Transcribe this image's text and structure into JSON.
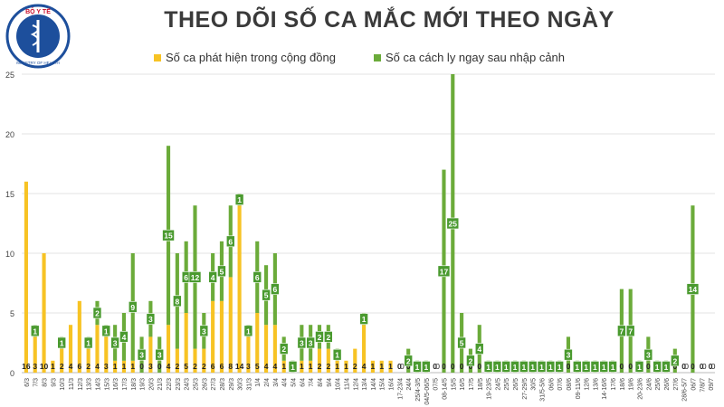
{
  "header": {
    "title": "THEO DÕI SỐ CA MẮC MỚI THEO NGÀY",
    "logo_top_text": "BỘ Y TẾ",
    "logo_bottom_text": "MINISTRY OF HEALTH"
  },
  "colors": {
    "community": "#f7c324",
    "imported": "#6bab3a",
    "label_fill": "#4a9a2f",
    "grid": "#e3e3e3",
    "axis_text": "#444444",
    "title": "#3a3a3a"
  },
  "chart_data": {
    "type": "bar",
    "title": "THEO DÕI SỐ CA MẮC MỚI THEO NGÀY",
    "xlabel": "",
    "ylabel": "",
    "ylim": [
      0,
      25
    ],
    "yticks": [
      0,
      5,
      10,
      15,
      20,
      25
    ],
    "grid": true,
    "legend_position": "top",
    "categories": [
      "6/3",
      "7/3",
      "8/3",
      "9/3",
      "10/3",
      "11/3",
      "12/3",
      "13/3",
      "14/3",
      "15/3",
      "16/3",
      "17/3",
      "18/3",
      "19/3",
      "20/3",
      "21/3",
      "22/3",
      "23/3",
      "24/3",
      "25/3",
      "26/3",
      "27/3",
      "28/3",
      "29/3",
      "30/3",
      "31/3",
      "1/4",
      "2/4",
      "3/4",
      "4/4",
      "5/4",
      "6/4",
      "7/4",
      "8/4",
      "9/4",
      "10/4",
      "11/4",
      "12/4",
      "13/4",
      "14/4",
      "15/4",
      "16/4",
      "17-23/4",
      "24/4",
      "25/4-3/5",
      "04/5-06/5",
      "07/5",
      "08-14/5",
      "15/5",
      "16/5",
      "17/5",
      "18/5",
      "19-23/5",
      "24/5",
      "25/5",
      "26/5",
      "27-29/5",
      "30/5",
      "31/5-5/6",
      "06/6",
      "07/6",
      "08/6",
      "09-11/6",
      "12/6",
      "13/6",
      "14-16/6",
      "17/6",
      "18/6",
      "19/6",
      "20-23/6",
      "24/6",
      "25/6",
      "26/6",
      "27/6",
      "28/6-5/7",
      "06/7",
      "7/8/7",
      "09/7"
    ],
    "series": [
      {
        "name": "Số ca phát hiện trong cộng đồng",
        "values": [
          16,
          3,
          10,
          1,
          2,
          4,
          6,
          2,
          4,
          3,
          1,
          1,
          1,
          0,
          3,
          0,
          4,
          2,
          5,
          2,
          2,
          6,
          6,
          8,
          14,
          3,
          5,
          4,
          4,
          1,
          0,
          1,
          1,
          2,
          2,
          1,
          1,
          2,
          4,
          1,
          1,
          1,
          0,
          0,
          0,
          0,
          0,
          0,
          0,
          0,
          0,
          0,
          0,
          0,
          0,
          0,
          0,
          0,
          0,
          0,
          0,
          0,
          0,
          0,
          0,
          0,
          0,
          0,
          0,
          0,
          0,
          0,
          0,
          0,
          0,
          0,
          0,
          0
        ]
      },
      {
        "name": "Số ca cách ly ngay sau nhập cảnh",
        "values": [
          0,
          1,
          0,
          0,
          1,
          0,
          0,
          1,
          2,
          1,
          3,
          4,
          9,
          3,
          3,
          3,
          15,
          8,
          6,
          12,
          3,
          4,
          5,
          6,
          1,
          1,
          6,
          5,
          6,
          2,
          1,
          3,
          3,
          2,
          2,
          1,
          0,
          0,
          1,
          0,
          0,
          0,
          0,
          2,
          1,
          1,
          0,
          17,
          25,
          5,
          2,
          4,
          1,
          1,
          1,
          1,
          1,
          1,
          1,
          1,
          1,
          3,
          1,
          1,
          1,
          1,
          1,
          7,
          7,
          1,
          3,
          1,
          1,
          2,
          0,
          14,
          0,
          0
        ]
      }
    ],
    "value_labels": [
      [
        "16",
        "3",
        "10",
        "1",
        "2",
        "4",
        "6",
        "2",
        "4",
        "3",
        "1",
        "1",
        "1",
        "0",
        "3",
        "0",
        "4",
        "2",
        "5",
        "2",
        "2",
        "6",
        "6",
        "8",
        "14",
        "3",
        "5",
        "4",
        "4",
        "1",
        "0",
        "1",
        "1",
        "2",
        "2",
        "1",
        "1",
        "2",
        "4",
        "1",
        "1",
        "1",
        "0",
        "0",
        "0",
        "0",
        "0",
        "0",
        "0",
        "0",
        "0",
        "0",
        "0",
        "0",
        "0",
        "0",
        "0",
        "0",
        "0",
        "0",
        "0",
        "0",
        "0",
        "0",
        "0",
        "0",
        "0",
        "0",
        "0",
        "0",
        "0",
        "0",
        "0",
        "0",
        "0",
        "0",
        "0",
        "0"
      ],
      [
        "0",
        "1",
        "0",
        "0",
        "1",
        "0",
        "0",
        "1",
        "2",
        "1",
        "3",
        "4",
        "9",
        "3",
        "3",
        "3",
        "15",
        "8",
        "6",
        "12",
        "3",
        "4",
        "5",
        "6",
        "1",
        "1",
        "6",
        "5",
        "6",
        "2",
        "1",
        "3",
        "3",
        "2",
        "2",
        "1",
        "0",
        "0",
        "1",
        "0",
        "0",
        "0",
        "0",
        "2",
        "1",
        "1",
        "0",
        "17",
        "25",
        "5",
        "2",
        "4",
        "1",
        "1",
        "1",
        "1",
        "1",
        "1",
        "1",
        "1",
        "1",
        "3",
        "1",
        "1",
        "1",
        "1",
        "1",
        "7",
        "7",
        "1",
        "3",
        "1",
        "1",
        "2",
        "0",
        "14",
        "0",
        "0"
      ]
    ]
  }
}
